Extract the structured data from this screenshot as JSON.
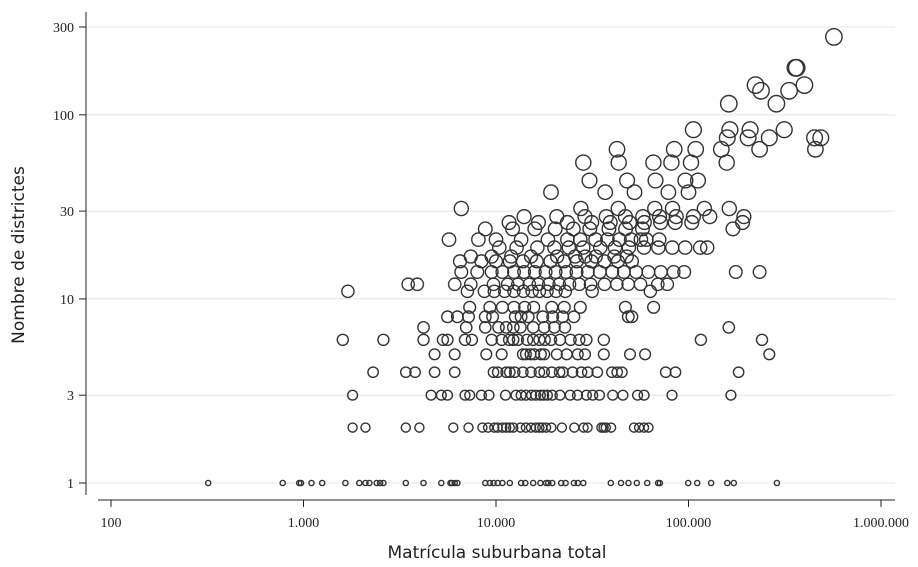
{
  "chart_data": {
    "type": "scatter",
    "title": "",
    "xlabel": "Matrícula suburbana total",
    "ylabel": "Nombre de districtes",
    "x_scale": "log",
    "y_scale": "log",
    "xlim": [
      100,
      1000000
    ],
    "ylim": [
      0.9,
      330
    ],
    "grid": "horizontal",
    "marker": "hollow circle, size grows with number of districts",
    "colors": {
      "marker_stroke": "#333333",
      "axis": "#222222",
      "grid": "#e4e4e4"
    },
    "xticks": [
      {
        "value": 100,
        "label": "100"
      },
      {
        "value": 1000,
        "label": "1.000"
      },
      {
        "value": 10000,
        "label": "10.000"
      },
      {
        "value": 100000,
        "label": "100.000"
      },
      {
        "value": 1000000,
        "label": "1.000.000"
      }
    ],
    "yticks": [
      {
        "value": 1,
        "label": "1"
      },
      {
        "value": 3,
        "label": "3"
      },
      {
        "value": 10,
        "label": "10"
      },
      {
        "value": 30,
        "label": "30"
      },
      {
        "value": 100,
        "label": "100"
      },
      {
        "value": 300,
        "label": "300"
      }
    ],
    "points": [
      [
        320,
        1
      ],
      [
        780,
        1
      ],
      [
        950,
        1
      ],
      [
        970,
        1
      ],
      [
        1100,
        1
      ],
      [
        1250,
        1
      ],
      [
        1650,
        1
      ],
      [
        1950,
        1
      ],
      [
        2100,
        1
      ],
      [
        2200,
        1
      ],
      [
        2400,
        1
      ],
      [
        2500,
        1
      ],
      [
        2600,
        1
      ],
      [
        3400,
        1
      ],
      [
        4200,
        1
      ],
      [
        5200,
        1
      ],
      [
        5800,
        1
      ],
      [
        5900,
        1
      ],
      [
        6100,
        1
      ],
      [
        6300,
        1
      ],
      [
        8800,
        1
      ],
      [
        9300,
        1
      ],
      [
        9700,
        1
      ],
      [
        10200,
        1
      ],
      [
        10800,
        1
      ],
      [
        11800,
        1
      ],
      [
        13500,
        1
      ],
      [
        14200,
        1
      ],
      [
        15600,
        1
      ],
      [
        17000,
        1
      ],
      [
        18200,
        1
      ],
      [
        18700,
        1
      ],
      [
        19600,
        1
      ],
      [
        21800,
        1
      ],
      [
        23000,
        1
      ],
      [
        25400,
        1
      ],
      [
        26600,
        1
      ],
      [
        28400,
        1
      ],
      [
        39500,
        1
      ],
      [
        44600,
        1
      ],
      [
        48800,
        1
      ],
      [
        53900,
        1
      ],
      [
        61000,
        1
      ],
      [
        69500,
        1
      ],
      [
        71000,
        1
      ],
      [
        99600,
        1
      ],
      [
        111000,
        1
      ],
      [
        131000,
        1
      ],
      [
        159000,
        1
      ],
      [
        172000,
        1
      ],
      [
        288000,
        1
      ],
      [
        1800,
        2
      ],
      [
        2100,
        2
      ],
      [
        3400,
        2
      ],
      [
        4000,
        2
      ],
      [
        6000,
        2
      ],
      [
        7200,
        2
      ],
      [
        8500,
        2
      ],
      [
        9100,
        2
      ],
      [
        9800,
        2
      ],
      [
        10200,
        2
      ],
      [
        10800,
        2
      ],
      [
        11300,
        2
      ],
      [
        11800,
        2
      ],
      [
        12300,
        2
      ],
      [
        13400,
        2
      ],
      [
        14300,
        2
      ],
      [
        15200,
        2
      ],
      [
        16100,
        2
      ],
      [
        16800,
        2
      ],
      [
        17400,
        2
      ],
      [
        18200,
        2
      ],
      [
        19400,
        2
      ],
      [
        22000,
        2
      ],
      [
        25500,
        2
      ],
      [
        28500,
        2
      ],
      [
        29900,
        2
      ],
      [
        35300,
        2
      ],
      [
        36200,
        2
      ],
      [
        37200,
        2
      ],
      [
        39600,
        2
      ],
      [
        52100,
        2
      ],
      [
        55400,
        2
      ],
      [
        58700,
        2
      ],
      [
        62000,
        2
      ],
      [
        1800,
        3
      ],
      [
        4600,
        3
      ],
      [
        5200,
        3
      ],
      [
        5600,
        3
      ],
      [
        6900,
        3
      ],
      [
        7300,
        3
      ],
      [
        8400,
        3
      ],
      [
        9200,
        3
      ],
      [
        11200,
        3
      ],
      [
        12700,
        3
      ],
      [
        13500,
        3
      ],
      [
        14300,
        3
      ],
      [
        15300,
        3
      ],
      [
        16100,
        3
      ],
      [
        17000,
        3
      ],
      [
        17700,
        3
      ],
      [
        18500,
        3
      ],
      [
        19600,
        3
      ],
      [
        21500,
        3
      ],
      [
        24300,
        3
      ],
      [
        26500,
        3
      ],
      [
        29500,
        3
      ],
      [
        31800,
        3
      ],
      [
        34500,
        3
      ],
      [
        40400,
        3
      ],
      [
        45600,
        3
      ],
      [
        54400,
        3
      ],
      [
        58800,
        3
      ],
      [
        82100,
        3
      ],
      [
        166000,
        3
      ],
      [
        2300,
        4
      ],
      [
        3400,
        4
      ],
      [
        3800,
        4
      ],
      [
        4800,
        4
      ],
      [
        6100,
        4
      ],
      [
        9700,
        4
      ],
      [
        10200,
        4
      ],
      [
        11300,
        4
      ],
      [
        11800,
        4
      ],
      [
        12500,
        4
      ],
      [
        13800,
        4
      ],
      [
        15200,
        4
      ],
      [
        16800,
        4
      ],
      [
        17800,
        4
      ],
      [
        19500,
        4
      ],
      [
        21400,
        4
      ],
      [
        22300,
        4
      ],
      [
        25000,
        4
      ],
      [
        27800,
        4
      ],
      [
        30000,
        4
      ],
      [
        33600,
        4
      ],
      [
        40000,
        4
      ],
      [
        42600,
        4
      ],
      [
        45100,
        4
      ],
      [
        76100,
        4
      ],
      [
        85600,
        4
      ],
      [
        182000,
        4
      ],
      [
        4800,
        5
      ],
      [
        6100,
        5
      ],
      [
        8900,
        5
      ],
      [
        10700,
        5
      ],
      [
        13800,
        5
      ],
      [
        14300,
        5
      ],
      [
        15100,
        5
      ],
      [
        15800,
        5
      ],
      [
        17100,
        5
      ],
      [
        17800,
        5
      ],
      [
        20700,
        5
      ],
      [
        23300,
        5
      ],
      [
        26600,
        5
      ],
      [
        29000,
        5
      ],
      [
        36300,
        5
      ],
      [
        49700,
        5
      ],
      [
        59500,
        5
      ],
      [
        263000,
        5
      ],
      [
        1600,
        6
      ],
      [
        2600,
        6
      ],
      [
        4200,
        6
      ],
      [
        5300,
        6
      ],
      [
        5600,
        6
      ],
      [
        6900,
        6
      ],
      [
        7500,
        6
      ],
      [
        9500,
        6
      ],
      [
        10700,
        6
      ],
      [
        11700,
        6
      ],
      [
        12300,
        6
      ],
      [
        13000,
        6
      ],
      [
        14500,
        6
      ],
      [
        15600,
        6
      ],
      [
        16800,
        6
      ],
      [
        17900,
        6
      ],
      [
        19300,
        6
      ],
      [
        21500,
        6
      ],
      [
        24400,
        6
      ],
      [
        27100,
        6
      ],
      [
        29500,
        6
      ],
      [
        36300,
        6
      ],
      [
        116000,
        6
      ],
      [
        241000,
        6
      ],
      [
        4200,
        7
      ],
      [
        7000,
        7
      ],
      [
        8800,
        7
      ],
      [
        10300,
        7
      ],
      [
        11300,
        7
      ],
      [
        12300,
        7
      ],
      [
        13400,
        7
      ],
      [
        15600,
        7
      ],
      [
        17800,
        7
      ],
      [
        20100,
        7
      ],
      [
        22800,
        7
      ],
      [
        162000,
        7
      ],
      [
        5600,
        8
      ],
      [
        6300,
        8
      ],
      [
        7200,
        8
      ],
      [
        8800,
        8
      ],
      [
        9600,
        8
      ],
      [
        12600,
        8
      ],
      [
        13500,
        8
      ],
      [
        14700,
        8
      ],
      [
        17500,
        8
      ],
      [
        19700,
        8
      ],
      [
        22200,
        8
      ],
      [
        25400,
        8
      ],
      [
        48700,
        8
      ],
      [
        50800,
        8
      ],
      [
        7300,
        9
      ],
      [
        9300,
        9
      ],
      [
        10800,
        9
      ],
      [
        12400,
        9
      ],
      [
        14100,
        9
      ],
      [
        15700,
        9
      ],
      [
        19500,
        9
      ],
      [
        22600,
        9
      ],
      [
        27400,
        9
      ],
      [
        47000,
        9
      ],
      [
        65900,
        9
      ],
      [
        1700,
        11
      ],
      [
        7100,
        11
      ],
      [
        8700,
        11
      ],
      [
        9800,
        11
      ],
      [
        11100,
        11
      ],
      [
        12400,
        11
      ],
      [
        13900,
        11
      ],
      [
        15400,
        11
      ],
      [
        16800,
        11
      ],
      [
        18400,
        11
      ],
      [
        20500,
        11
      ],
      [
        22900,
        11
      ],
      [
        31600,
        11
      ],
      [
        63300,
        11
      ],
      [
        3500,
        12
      ],
      [
        3900,
        12
      ],
      [
        6100,
        12
      ],
      [
        7400,
        12
      ],
      [
        9700,
        12
      ],
      [
        11500,
        12
      ],
      [
        13000,
        12
      ],
      [
        14900,
        12
      ],
      [
        16600,
        12
      ],
      [
        18800,
        12
      ],
      [
        21300,
        12
      ],
      [
        24100,
        12
      ],
      [
        27100,
        12
      ],
      [
        31000,
        12
      ],
      [
        36600,
        12
      ],
      [
        42400,
        12
      ],
      [
        48600,
        12
      ],
      [
        56300,
        12
      ],
      [
        69300,
        12
      ],
      [
        77600,
        12
      ],
      [
        6600,
        14
      ],
      [
        8000,
        14
      ],
      [
        9500,
        14
      ],
      [
        10800,
        14
      ],
      [
        12400,
        14
      ],
      [
        14000,
        14
      ],
      [
        15900,
        14
      ],
      [
        18100,
        14
      ],
      [
        20400,
        14
      ],
      [
        23100,
        14
      ],
      [
        26200,
        14
      ],
      [
        30000,
        14
      ],
      [
        34600,
        14
      ],
      [
        40200,
        14
      ],
      [
        46200,
        14
      ],
      [
        53400,
        14
      ],
      [
        61900,
        14
      ],
      [
        71800,
        14
      ],
      [
        83700,
        14
      ],
      [
        95000,
        14
      ],
      [
        176000,
        14
      ],
      [
        234000,
        14
      ],
      [
        6500,
        16
      ],
      [
        8400,
        16
      ],
      [
        10000,
        16
      ],
      [
        11800,
        16
      ],
      [
        13800,
        16
      ],
      [
        16300,
        16
      ],
      [
        19200,
        16
      ],
      [
        22600,
        16
      ],
      [
        26300,
        16
      ],
      [
        31300,
        16
      ],
      [
        36600,
        16
      ],
      [
        43000,
        16
      ],
      [
        50800,
        16
      ],
      [
        7400,
        17
      ],
      [
        9500,
        17
      ],
      [
        12000,
        17
      ],
      [
        15200,
        17
      ],
      [
        20800,
        17
      ],
      [
        25800,
        17
      ],
      [
        29100,
        17
      ],
      [
        33000,
        17
      ],
      [
        41200,
        17
      ],
      [
        47800,
        17
      ],
      [
        10400,
        19
      ],
      [
        12800,
        19
      ],
      [
        16400,
        19
      ],
      [
        20100,
        19
      ],
      [
        23900,
        19
      ],
      [
        28400,
        19
      ],
      [
        34800,
        19
      ],
      [
        41500,
        19
      ],
      [
        49000,
        19
      ],
      [
        58700,
        19
      ],
      [
        69700,
        19
      ],
      [
        82400,
        19
      ],
      [
        96100,
        19
      ],
      [
        115000,
        19
      ],
      [
        125000,
        19
      ],
      [
        5700,
        21
      ],
      [
        8100,
        21
      ],
      [
        10000,
        21
      ],
      [
        13500,
        21
      ],
      [
        18600,
        21
      ],
      [
        23500,
        21
      ],
      [
        27400,
        21
      ],
      [
        32900,
        21
      ],
      [
        37900,
        21
      ],
      [
        43800,
        21
      ],
      [
        50400,
        21
      ],
      [
        56600,
        21
      ],
      [
        60400,
        21
      ],
      [
        70400,
        21
      ],
      [
        8800,
        24
      ],
      [
        12200,
        24
      ],
      [
        15900,
        24
      ],
      [
        20300,
        24
      ],
      [
        25200,
        24
      ],
      [
        30700,
        24
      ],
      [
        38600,
        24
      ],
      [
        47100,
        24
      ],
      [
        57700,
        24
      ],
      [
        170000,
        24
      ],
      [
        11700,
        26
      ],
      [
        16600,
        26
      ],
      [
        23500,
        26
      ],
      [
        31400,
        26
      ],
      [
        39200,
        26
      ],
      [
        49400,
        26
      ],
      [
        59000,
        26
      ],
      [
        71600,
        26
      ],
      [
        85300,
        26
      ],
      [
        104000,
        26
      ],
      [
        191000,
        26
      ],
      [
        14000,
        28
      ],
      [
        20700,
        28
      ],
      [
        29000,
        28
      ],
      [
        37400,
        28
      ],
      [
        47000,
        28
      ],
      [
        57900,
        28
      ],
      [
        70700,
        28
      ],
      [
        86300,
        28
      ],
      [
        106000,
        28
      ],
      [
        129000,
        28
      ],
      [
        194000,
        28
      ],
      [
        6600,
        31
      ],
      [
        27600,
        31
      ],
      [
        43200,
        31
      ],
      [
        66800,
        31
      ],
      [
        82600,
        31
      ],
      [
        121000,
        31
      ],
      [
        163000,
        31
      ],
      [
        19300,
        38
      ],
      [
        36900,
        38
      ],
      [
        52400,
        38
      ],
      [
        78600,
        38
      ],
      [
        100000,
        38
      ],
      [
        30600,
        44
      ],
      [
        48000,
        44
      ],
      [
        67400,
        44
      ],
      [
        96400,
        44
      ],
      [
        112000,
        44
      ],
      [
        28400,
        55
      ],
      [
        43400,
        55
      ],
      [
        65700,
        55
      ],
      [
        81500,
        55
      ],
      [
        103000,
        55
      ],
      [
        158000,
        55
      ],
      [
        42500,
        65
      ],
      [
        84300,
        65
      ],
      [
        109000,
        65
      ],
      [
        148000,
        65
      ],
      [
        234000,
        65
      ],
      [
        456000,
        65
      ],
      [
        159000,
        75
      ],
      [
        204000,
        75
      ],
      [
        263000,
        75
      ],
      [
        452000,
        75
      ],
      [
        487000,
        75
      ],
      [
        106000,
        83
      ],
      [
        164000,
        83
      ],
      [
        209000,
        83
      ],
      [
        314000,
        83
      ],
      [
        162000,
        115
      ],
      [
        286000,
        115
      ],
      [
        238000,
        135
      ],
      [
        333000,
        135
      ],
      [
        223000,
        145
      ],
      [
        400000,
        145
      ],
      [
        359000,
        180
      ],
      [
        365000,
        180
      ],
      [
        569000,
        265
      ]
    ]
  }
}
